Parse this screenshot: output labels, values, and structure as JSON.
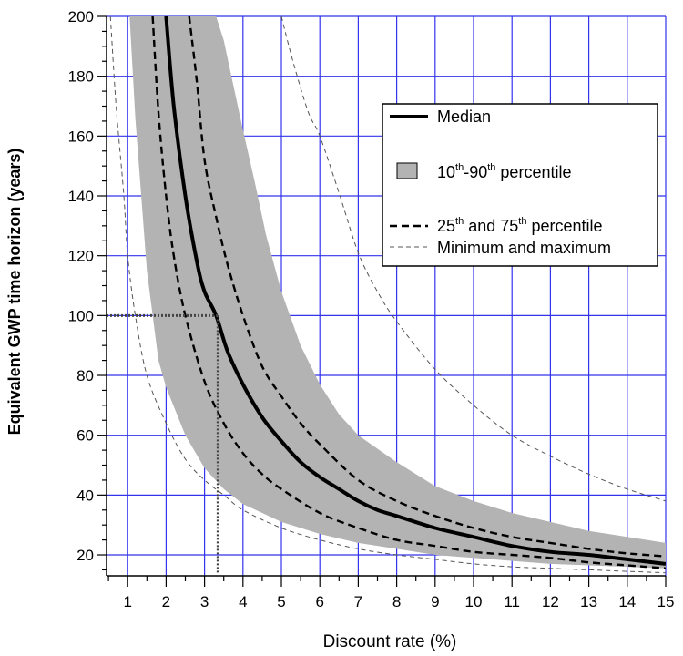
{
  "chart_data": {
    "type": "line",
    "xlabel": "Discount rate (%)",
    "ylabel": "Equivalent GWP  time  horizon (years)",
    "xlim": [
      0.45,
      15
    ],
    "ylim": [
      13,
      200
    ],
    "x_ticks": [
      1,
      2,
      3,
      4,
      5,
      6,
      7,
      8,
      9,
      10,
      11,
      12,
      13,
      14,
      15
    ],
    "y_ticks": [
      20,
      40,
      60,
      80,
      100,
      120,
      140,
      160,
      180,
      200
    ],
    "grid": true,
    "grid_color": "#3333ee",
    "legend_position": "upper-right",
    "legend": {
      "median": "Median",
      "band_sup_a": "th",
      "band_mid": "-90",
      "band_sup_b": "th",
      "band_rest": " percentile",
      "band_pre": "10",
      "quartile_pre": "25",
      "quartile_sup_a": "th",
      "quartile_mid": " and 75",
      "quartile_sup_b": "th",
      "quartile_rest": " percentile",
      "minmax": "Minimum and maximum"
    },
    "series": [
      {
        "name": "Median",
        "style": "solid-thick",
        "x": [
          2.0,
          2.2,
          2.5,
          2.8,
          3.0,
          3.3,
          3.6,
          4.0,
          4.5,
          5.0,
          5.5,
          6.0,
          6.5,
          7.0,
          7.5,
          8.0,
          9.0,
          10.0,
          11.0,
          12.0,
          13.0,
          14.0,
          15.0
        ],
        "y": [
          200,
          170,
          140,
          118,
          108,
          100,
          88,
          77,
          66,
          58,
          51,
          46,
          42,
          38,
          35,
          33,
          29,
          26,
          23,
          21,
          20,
          18.5,
          17
        ]
      },
      {
        "name": "25th percentile",
        "style": "dashed",
        "x": [
          1.65,
          1.8,
          2.0,
          2.2,
          2.5,
          3.0,
          3.5,
          4.0,
          4.5,
          5.0,
          6.0,
          7.0,
          8.0,
          9.0,
          10.0,
          11.0,
          12.0,
          13.0,
          14.0,
          15.0
        ],
        "y": [
          200,
          168,
          140,
          120,
          100,
          78,
          64,
          54,
          47,
          42,
          34,
          29,
          25,
          23,
          21,
          20,
          19,
          17.5,
          16.5,
          15.5
        ]
      },
      {
        "name": "75th percentile",
        "style": "dashed",
        "x": [
          2.6,
          2.8,
          3.0,
          3.3,
          3.6,
          4.0,
          4.5,
          5.0,
          5.5,
          6.0,
          7.0,
          8.0,
          9.0,
          10.0,
          11.0,
          12.0,
          13.0,
          14.0,
          15.0
        ],
        "y": [
          200,
          178,
          152,
          133,
          117,
          100,
          83,
          73,
          64,
          57,
          45,
          38,
          33,
          29,
          26,
          24,
          22,
          20.5,
          19.5
        ]
      },
      {
        "name": "Minimum",
        "style": "dashed-thin",
        "x": [
          0.55,
          0.7,
          0.9,
          1.0,
          1.2,
          1.5,
          2.0,
          2.5,
          3.0,
          3.5,
          4.0,
          5.0,
          6.0,
          7.0,
          8.0,
          9.0,
          10.0,
          11.0,
          12.0,
          13.0,
          14.0,
          15.0
        ],
        "y": [
          200,
          170,
          140,
          120,
          100,
          80,
          64,
          52,
          45,
          40,
          35,
          29,
          25,
          22,
          20,
          18.5,
          17,
          16,
          15.5,
          15,
          14.5,
          14
        ]
      },
      {
        "name": "Maximum",
        "style": "dashed-thin",
        "x": [
          5.0,
          5.3,
          5.7,
          6.0,
          6.5,
          7.0,
          7.5,
          8.0,
          9.0,
          10.0,
          11.0,
          12.0,
          13.0,
          14.0,
          15.0
        ],
        "y": [
          200,
          185,
          168,
          160,
          141,
          121,
          108,
          98,
          82,
          70,
          60,
          53,
          47,
          42,
          38
        ]
      }
    ],
    "band": {
      "name": "10th-90th percentile",
      "lower_x": [
        1.05,
        1.2,
        1.5,
        1.8,
        2.0,
        2.5,
        3.0,
        3.5,
        4.0,
        4.5,
        5.0,
        6.0,
        7.0,
        8.0,
        9.0,
        10.0,
        11.0,
        12.0,
        13.0,
        14.0,
        15.0
      ],
      "lower_y": [
        200,
        166,
        115,
        85,
        76,
        60,
        49,
        42,
        37,
        34,
        31,
        27,
        24,
        22,
        20,
        19,
        18,
        17,
        16.5,
        16,
        15.5
      ],
      "upper_x": [
        15.0,
        14.0,
        13.0,
        12.0,
        11.0,
        10.0,
        9.0,
        8.0,
        7.0,
        6.5,
        6.0,
        5.5,
        5.0,
        4.6,
        4.3,
        4.0,
        3.7,
        3.5,
        3.3
      ],
      "upper_y": [
        24,
        26,
        28,
        31,
        34,
        38,
        43,
        51,
        60,
        67,
        77,
        90,
        108,
        127,
        145,
        162,
        180,
        192,
        200
      ],
      "color": "#b3b3b3"
    },
    "reference_lines": [
      {
        "x": [
          0.45,
          3.35
        ],
        "y": [
          100,
          100
        ]
      },
      {
        "x": [
          3.35,
          3.35
        ],
        "y": [
          100,
          14
        ]
      }
    ]
  }
}
